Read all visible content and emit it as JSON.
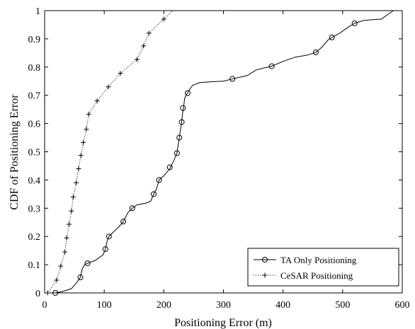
{
  "chart_data": {
    "type": "line",
    "xlabel": "Positioning Error (m)",
    "ylabel": "CDF of Positioning Error",
    "xlim": [
      0,
      600
    ],
    "ylim": [
      0,
      1
    ],
    "xticks": [
      0,
      100,
      200,
      300,
      400,
      500,
      600
    ],
    "yticks": [
      0,
      0.1,
      0.2,
      0.3,
      0.4,
      0.5,
      0.6,
      0.7,
      0.8,
      0.9,
      1
    ],
    "grid": false,
    "legend_position": "bottom-right",
    "series": [
      {
        "name": "TA Only Positioning",
        "line_style": "solid",
        "marker": "circle",
        "color": "#000000",
        "line": [
          [
            18,
            0
          ],
          [
            30,
            0.005
          ],
          [
            45,
            0.015
          ],
          [
            55,
            0.04
          ],
          [
            60,
            0.055
          ],
          [
            63,
            0.085
          ],
          [
            67,
            0.1
          ],
          [
            72,
            0.105
          ],
          [
            85,
            0.115
          ],
          [
            98,
            0.135
          ],
          [
            102,
            0.155
          ],
          [
            105,
            0.185
          ],
          [
            108,
            0.2
          ],
          [
            115,
            0.215
          ],
          [
            125,
            0.235
          ],
          [
            132,
            0.253
          ],
          [
            140,
            0.285
          ],
          [
            147,
            0.3
          ],
          [
            155,
            0.312
          ],
          [
            170,
            0.318
          ],
          [
            178,
            0.325
          ],
          [
            183,
            0.35
          ],
          [
            188,
            0.37
          ],
          [
            192,
            0.4
          ],
          [
            200,
            0.415
          ],
          [
            210,
            0.44
          ],
          [
            217,
            0.47
          ],
          [
            222,
            0.495
          ],
          [
            226,
            0.55
          ],
          [
            228,
            0.58
          ],
          [
            230,
            0.605
          ],
          [
            231,
            0.63
          ],
          [
            233,
            0.655
          ],
          [
            235,
            0.69
          ],
          [
            240,
            0.71
          ],
          [
            248,
            0.735
          ],
          [
            260,
            0.745
          ],
          [
            280,
            0.748
          ],
          [
            300,
            0.75
          ],
          [
            315,
            0.758
          ],
          [
            340,
            0.77
          ],
          [
            355,
            0.79
          ],
          [
            370,
            0.798
          ],
          [
            381,
            0.803
          ],
          [
            400,
            0.82
          ],
          [
            420,
            0.835
          ],
          [
            440,
            0.842
          ],
          [
            455,
            0.852
          ],
          [
            465,
            0.87
          ],
          [
            475,
            0.895
          ],
          [
            482,
            0.905
          ],
          [
            495,
            0.92
          ],
          [
            505,
            0.935
          ],
          [
            512,
            0.945
          ],
          [
            520,
            0.955
          ],
          [
            535,
            0.965
          ],
          [
            550,
            0.968
          ],
          [
            565,
            0.97
          ],
          [
            575,
            0.985
          ],
          [
            585,
            1
          ]
        ],
        "markers": [
          [
            18,
            0
          ],
          [
            60,
            0.055
          ],
          [
            72,
            0.105
          ],
          [
            102,
            0.155
          ],
          [
            108,
            0.2
          ],
          [
            132,
            0.253
          ],
          [
            147,
            0.3
          ],
          [
            183,
            0.35
          ],
          [
            192,
            0.4
          ],
          [
            210,
            0.445
          ],
          [
            222,
            0.495
          ],
          [
            226,
            0.55
          ],
          [
            230,
            0.605
          ],
          [
            232,
            0.655
          ],
          [
            240,
            0.708
          ],
          [
            315,
            0.758
          ],
          [
            381,
            0.803
          ],
          [
            455,
            0.852
          ],
          [
            482,
            0.905
          ],
          [
            520,
            0.955
          ]
        ]
      },
      {
        "name": "CeSAR Positioning",
        "line_style": "dotted",
        "marker": "plus",
        "color": "#000000",
        "line": [
          [
            5,
            0
          ],
          [
            20,
            0.045
          ],
          [
            27,
            0.095
          ],
          [
            34,
            0.145
          ],
          [
            37,
            0.195
          ],
          [
            41,
            0.243
          ],
          [
            45,
            0.29
          ],
          [
            48,
            0.34
          ],
          [
            53,
            0.39
          ],
          [
            57,
            0.44
          ],
          [
            61,
            0.487
          ],
          [
            65,
            0.533
          ],
          [
            70,
            0.58
          ],
          [
            74,
            0.633
          ],
          [
            88,
            0.68
          ],
          [
            107,
            0.73
          ],
          [
            127,
            0.778
          ],
          [
            155,
            0.827
          ],
          [
            166,
            0.875
          ],
          [
            175,
            0.92
          ],
          [
            200,
            0.97
          ],
          [
            210,
            0.99
          ],
          [
            215,
            1
          ],
          [
            250,
            1
          ],
          [
            585,
            1
          ]
        ],
        "markers": [
          [
            5,
            0
          ],
          [
            20,
            0.045
          ],
          [
            27,
            0.095
          ],
          [
            34,
            0.145
          ],
          [
            37,
            0.195
          ],
          [
            41,
            0.243
          ],
          [
            45,
            0.29
          ],
          [
            48,
            0.34
          ],
          [
            53,
            0.39
          ],
          [
            57,
            0.44
          ],
          [
            61,
            0.487
          ],
          [
            65,
            0.533
          ],
          [
            70,
            0.58
          ],
          [
            74,
            0.633
          ],
          [
            88,
            0.68
          ],
          [
            107,
            0.73
          ],
          [
            127,
            0.778
          ],
          [
            155,
            0.827
          ],
          [
            166,
            0.875
          ],
          [
            175,
            0.92
          ],
          [
            200,
            0.97
          ]
        ]
      }
    ]
  }
}
